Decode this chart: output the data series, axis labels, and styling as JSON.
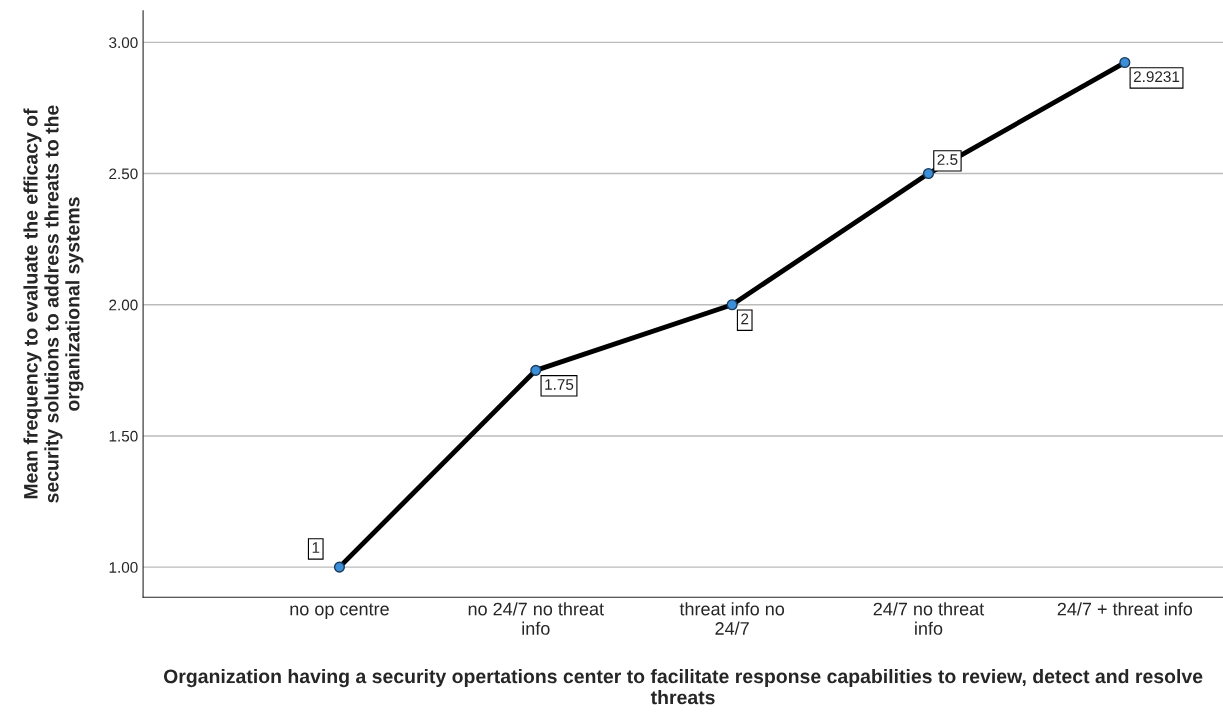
{
  "chart_data": {
    "type": "line",
    "xlabel": "Organization having a security opertations center to facilitate response capabilities to review, detect and resolve threats",
    "ylabel": "Mean frequency to evaluate the efficacy of security solutions to address threats to the organizational systems",
    "categories": [
      "no op centre",
      "no 24/7 no threat info",
      "threat info no 24/7",
      "24/7 no threat info",
      "24/7 + threat info"
    ],
    "series": [
      {
        "color": "#000000",
        "colors": [
          "#3b8fd9",
          "#3b8fd9",
          "#3b8fd9",
          "#3b8fd9",
          "#3b8fd9"
        ],
        "values": [
          1,
          1.75,
          2,
          2.5,
          2.9231
        ]
      }
    ],
    "ylim": [
      0.885,
      3.12
    ],
    "yticks": [
      {
        "value": 1,
        "label": "1.00"
      },
      {
        "value": 1.5,
        "label": "1.50"
      },
      {
        "value": 2,
        "label": "2.00"
      },
      {
        "value": 2.5,
        "label": "2.50"
      },
      {
        "value": 3,
        "label": "3.00"
      }
    ],
    "grid": "y",
    "marker": "circle",
    "line_style": "solid",
    "data_labels": true
  }
}
